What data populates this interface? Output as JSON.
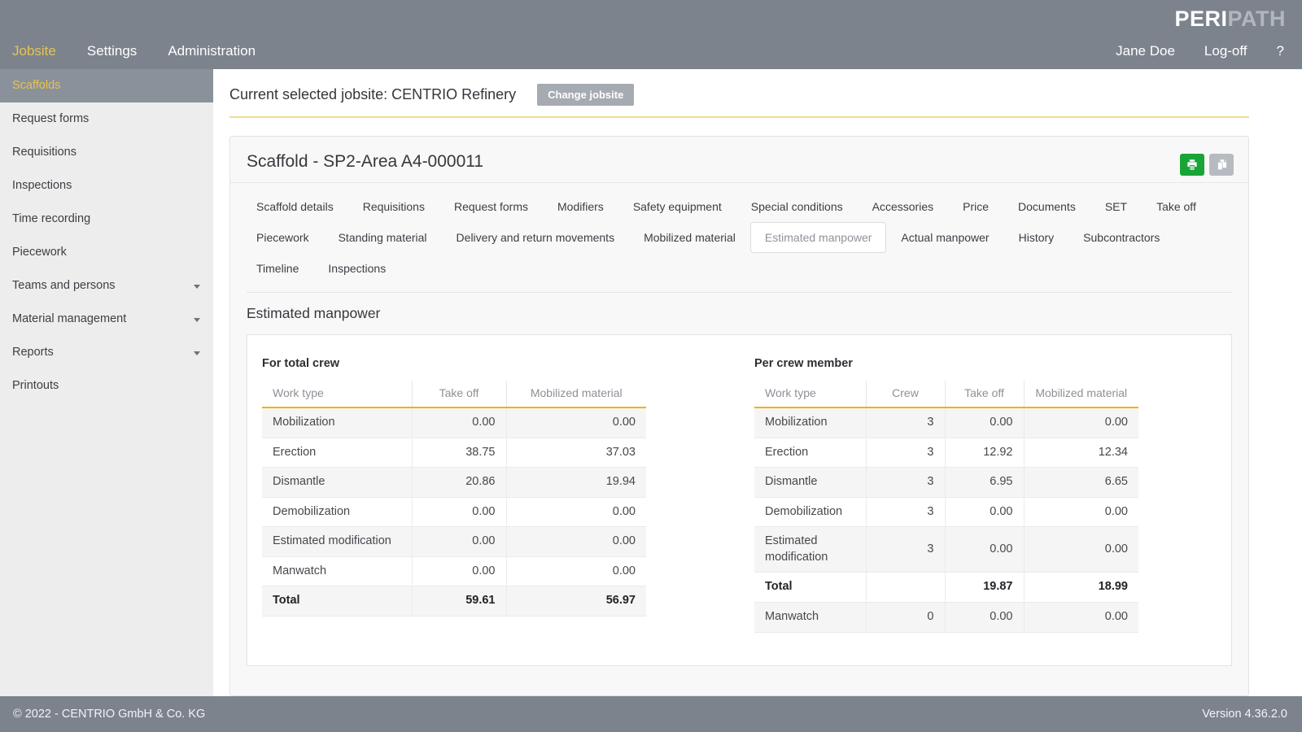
{
  "brand": {
    "peri": "PERI",
    "path": "PATH"
  },
  "topnav": {
    "items": [
      {
        "label": "Jobsite",
        "active": true
      },
      {
        "label": "Settings",
        "active": false
      },
      {
        "label": "Administration",
        "active": false
      }
    ],
    "user": "Jane Doe",
    "logoff": "Log-off",
    "help": "?"
  },
  "sidebar": {
    "items": [
      {
        "label": "Scaffolds",
        "active": true,
        "caret": false
      },
      {
        "label": "Request forms",
        "active": false,
        "caret": false
      },
      {
        "label": "Requisitions",
        "active": false,
        "caret": false
      },
      {
        "label": "Inspections",
        "active": false,
        "caret": false
      },
      {
        "label": "Time recording",
        "active": false,
        "caret": false
      },
      {
        "label": "Piecework",
        "active": false,
        "caret": false
      },
      {
        "label": "Teams and persons",
        "active": false,
        "caret": true
      },
      {
        "label": "Material management",
        "active": false,
        "caret": true
      },
      {
        "label": "Reports",
        "active": false,
        "caret": true
      },
      {
        "label": "Printouts",
        "active": false,
        "caret": false
      }
    ]
  },
  "jobsite_bar": {
    "label": "Current selected jobsite: CENTRIO Refinery",
    "change_button": "Change jobsite"
  },
  "scaffold_panel": {
    "title": "Scaffold - SP2-Area A4-000011",
    "toolbar_icons": [
      "print-icon",
      "copy-icon"
    ],
    "tab_rows": [
      [
        "Scaffold details",
        "Requisitions",
        "Request forms",
        "Modifiers",
        "Safety equipment",
        "Special conditions",
        "Accessories",
        "Price",
        "Documents",
        "SET",
        "Take off"
      ],
      [
        "Piecework",
        "Standing material",
        "Delivery and return movements",
        "Mobilized material",
        "Estimated manpower",
        "Actual manpower",
        "History",
        "Subcontractors"
      ],
      [
        "Timeline",
        "Inspections"
      ]
    ],
    "active_tab": "Estimated manpower",
    "section_title": "Estimated manpower"
  },
  "tables": {
    "for_total_crew": {
      "title": "For total crew",
      "columns": [
        "Work type",
        "Take off",
        "Mobilized material"
      ],
      "rows": [
        {
          "cells": [
            "Mobilization",
            "0.00",
            "0.00"
          ],
          "bold": false
        },
        {
          "cells": [
            "Erection",
            "38.75",
            "37.03"
          ],
          "bold": false
        },
        {
          "cells": [
            "Dismantle",
            "20.86",
            "19.94"
          ],
          "bold": false
        },
        {
          "cells": [
            "Demobilization",
            "0.00",
            "0.00"
          ],
          "bold": false
        },
        {
          "cells": [
            "Estimated modification",
            "0.00",
            "0.00"
          ],
          "bold": false
        },
        {
          "cells": [
            "Manwatch",
            "0.00",
            "0.00"
          ],
          "bold": false
        },
        {
          "cells": [
            "Total",
            "59.61",
            "56.97"
          ],
          "bold": true
        }
      ]
    },
    "per_crew_member": {
      "title": "Per crew member",
      "columns": [
        "Work type",
        "Crew",
        "Take off",
        "Mobilized material"
      ],
      "rows": [
        {
          "cells": [
            "Mobilization",
            "3",
            "0.00",
            "0.00"
          ],
          "bold": false
        },
        {
          "cells": [
            "Erection",
            "3",
            "12.92",
            "12.34"
          ],
          "bold": false
        },
        {
          "cells": [
            "Dismantle",
            "3",
            "6.95",
            "6.65"
          ],
          "bold": false
        },
        {
          "cells": [
            "Demobilization",
            "3",
            "0.00",
            "0.00"
          ],
          "bold": false
        },
        {
          "cells": [
            "Estimated modification",
            "3",
            "0.00",
            "0.00"
          ],
          "bold": false
        },
        {
          "cells": [
            "Total",
            "",
            "19.87",
            "18.99"
          ],
          "bold": true
        },
        {
          "cells": [
            "Manwatch",
            "0",
            "0.00",
            "0.00"
          ],
          "bold": false
        }
      ]
    }
  },
  "footer": {
    "copyright": "© 2022 - CENTRIO GmbH & Co. KG",
    "version": "Version 4.36.2.0"
  },
  "colors": {
    "bar_gray": "#7c838d",
    "accent_gold": "#e6c44d",
    "pale_yellow_rule": "#f1dc8a",
    "table_header_amber": "#f3b200",
    "print_green": "#18a437",
    "button_gray": "#a6aab1"
  }
}
